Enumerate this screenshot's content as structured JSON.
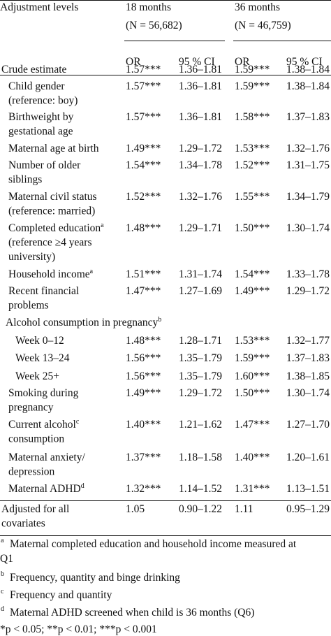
{
  "header": {
    "label": "Adjustment levels",
    "groups": [
      {
        "title": "18 months",
        "n": "(N = 56,682)"
      },
      {
        "title": "36 months",
        "n": "(N = 46,759)"
      }
    ],
    "columns": [
      "OR",
      "95 % CI",
      "OR",
      "95 % CI"
    ]
  },
  "rows": [
    {
      "label": [
        "Crude estimate"
      ],
      "cells": [
        "1.57***",
        "1.36–1.81",
        "1.59***",
        "1.38–1.84"
      ]
    },
    {
      "label": [
        "Child gender",
        "(reference: boy)"
      ],
      "cells": [
        "1.57***",
        "1.36–1.81",
        "1.59***",
        "1.38–1.84"
      ]
    },
    {
      "label": [
        "Birthweight by",
        "gestational age"
      ],
      "cells": [
        "1.57***",
        "1.36–1.81",
        "1.58***",
        "1.37–1.83"
      ]
    },
    {
      "label": [
        "Maternal age at birth"
      ],
      "cells": [
        "1.49***",
        "1.29–1.72",
        "1.53***",
        "1.32–1.76"
      ]
    },
    {
      "label": [
        "Number of older",
        "siblings"
      ],
      "cells": [
        "1.54***",
        "1.34–1.78",
        "1.52***",
        "1.31–1.75"
      ]
    },
    {
      "label": [
        "Maternal civil status",
        "(reference: married)"
      ],
      "cells": [
        "1.52***",
        "1.32–1.76",
        "1.55***",
        "1.34–1.79"
      ]
    },
    {
      "label": [
        "Completed education",
        "(reference ≥4 years",
        "university)"
      ],
      "sup": "a",
      "cells": [
        "1.48***",
        "1.29–1.71",
        "1.50***",
        "1.30–1.74"
      ]
    },
    {
      "label": [
        "Household income"
      ],
      "sup": "a",
      "cells": [
        "1.51***",
        "1.31–1.74",
        "1.54***",
        "1.33–1.78"
      ]
    },
    {
      "label": [
        "Recent financial",
        "problems"
      ],
      "cells": [
        "1.47***",
        "1.27–1.69",
        "1.49***",
        "1.29–1.72"
      ]
    },
    {
      "label": [
        "Alcohol consumption in pregnancy"
      ],
      "sup": "b"
    },
    {
      "label": [
        "Week 0–12"
      ],
      "cells": [
        "1.48***",
        "1.28–1.71",
        "1.53***",
        "1.32–1.77"
      ]
    },
    {
      "label": [
        "Week 13–24"
      ],
      "cells": [
        "1.56***",
        "1.35–1.79",
        "1.59***",
        "1.37–1.83"
      ]
    },
    {
      "label": [
        "Week 25+"
      ],
      "cells": [
        "1.56***",
        "1.35–1.79",
        "1.60***",
        "1.38–1.85"
      ]
    },
    {
      "label": [
        "Smoking during",
        "pregnancy"
      ],
      "cells": [
        "1.49***",
        "1.29–1.72",
        "1.50***",
        "1.30–1.74"
      ]
    },
    {
      "label": [
        "Current alcohol",
        "consumption"
      ],
      "sup": "c",
      "cells": [
        "1.40***",
        "1.21–1.62",
        "1.47***",
        "1.27–1.70"
      ]
    },
    {
      "label": [
        "Maternal anxiety/",
        "depression"
      ],
      "cells": [
        "1.37***",
        "1.18–1.58",
        "1.40***",
        "1.20–1.61"
      ]
    },
    {
      "label": [
        "Maternal ADHD"
      ],
      "sup": "d",
      "cells": [
        "1.32***",
        "1.14–1.52",
        "1.31***",
        "1.13–1.51"
      ]
    },
    {
      "label": [
        "Adjusted for all",
        "covariates"
      ],
      "cells": [
        "1.05",
        "0.90–1.22",
        "1.11",
        "0.95–1.29"
      ]
    }
  ],
  "footnotes": [
    {
      "mark": "a",
      "lines": [
        "Maternal completed education and household income measured at",
        "Q1"
      ]
    },
    {
      "mark": "b",
      "lines": [
        "Frequency, quantity and binge drinking"
      ]
    },
    {
      "mark": "c",
      "lines": [
        "Frequency and quantity"
      ]
    },
    {
      "mark": "d",
      "lines": [
        "Maternal ADHD screened when child is 36 months (Q6)"
      ]
    }
  ],
  "significance": "*p < 0.05; **p < 0.01; ***p < 0.001"
}
